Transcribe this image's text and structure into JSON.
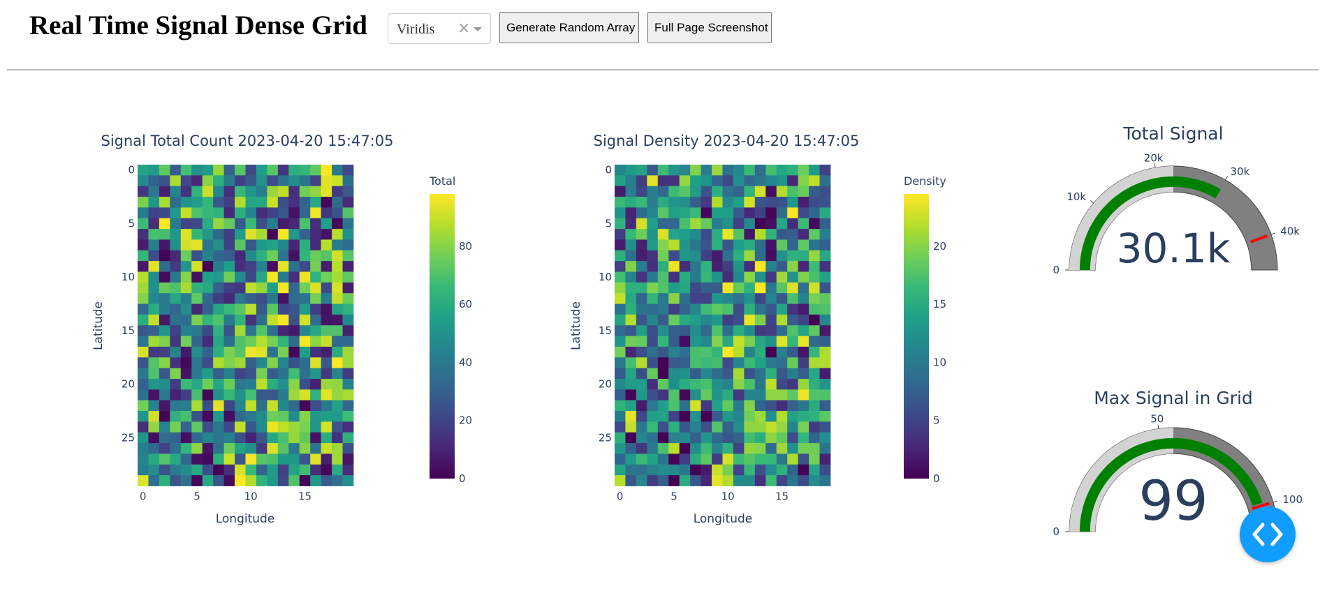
{
  "header": {
    "title": "Real Time Signal Dense Grid",
    "colorscale_value": "Viridis",
    "clear_glyph": "×",
    "generate_label": "Generate Random Array",
    "screenshot_label": "Full Page Screenshot"
  },
  "heatmaps": [
    {
      "title": "Signal Total Count 2023-04-20 15:47:05",
      "xlabel": "Longitude",
      "ylabel": "Latitude",
      "colorbar_title": "Total",
      "zmin": 0,
      "zmax": 98,
      "colorbar_ticks": [
        0,
        20,
        40,
        60,
        80
      ],
      "x_ticks": [
        0,
        5,
        10,
        15
      ],
      "y_ticks": [
        0,
        5,
        10,
        15,
        20,
        25
      ]
    },
    {
      "title": "Signal Density 2023-04-20 15:47:05",
      "xlabel": "Longitude",
      "ylabel": "Latitude",
      "colorbar_title": "Density",
      "zmin": 0,
      "zmax": 24.5,
      "colorbar_ticks": [
        0,
        5,
        10,
        15,
        20
      ],
      "x_ticks": [
        0,
        5,
        10,
        15
      ],
      "y_ticks": [
        0,
        5,
        10,
        15,
        20,
        25
      ]
    }
  ],
  "gauges": [
    {
      "title": "Total Signal",
      "value": 30100,
      "value_text": "30.1k",
      "range": [
        0,
        45000
      ],
      "steps_end": 22500,
      "threshold": 40000,
      "ticks": [
        {
          "value": 0,
          "label": "0"
        },
        {
          "value": 10000,
          "label": "10k"
        },
        {
          "value": 20000,
          "label": "20k"
        },
        {
          "value": 30000,
          "label": "30k"
        },
        {
          "value": 40000,
          "label": "40k"
        }
      ]
    },
    {
      "title": "Max Signal in Grid",
      "value": 99,
      "value_text": "99",
      "range": [
        0,
        110
      ],
      "steps_end": 55,
      "threshold": 100,
      "ticks": [
        {
          "value": 0,
          "label": "0"
        },
        {
          "value": 50,
          "label": "50"
        },
        {
          "value": 100,
          "label": "100"
        }
      ]
    }
  ],
  "colors": {
    "gauge_bar": "#008000",
    "gauge_step": "#d3d3d3",
    "gauge_bg": "#808080",
    "gauge_threshold": "#ff0000",
    "devtools": "#119dff"
  },
  "icons": {
    "clear": "clear-icon",
    "dropdown": "chevron-down-icon",
    "devtools": "code-icon"
  },
  "chart_data": [
    {
      "type": "heatmap",
      "title": "Signal Total Count 2023-04-20 15:47:05",
      "xlabel": "Longitude",
      "ylabel": "Latitude",
      "x": [
        0,
        1,
        2,
        3,
        4,
        5,
        6,
        7,
        8,
        9,
        10,
        11,
        12,
        13,
        14,
        15,
        16,
        17,
        18,
        19
      ],
      "y": [
        0,
        1,
        2,
        3,
        4,
        5,
        6,
        7,
        8,
        9,
        10,
        11,
        12,
        13,
        14,
        15,
        16,
        17,
        18,
        19,
        20,
        21,
        22,
        23,
        24,
        25,
        26,
        27,
        28,
        29
      ],
      "zrange": [
        0,
        98
      ],
      "colorscale": "Viridis",
      "colorbar_title": "Total"
    },
    {
      "type": "heatmap",
      "title": "Signal Density 2023-04-20 15:47:05",
      "xlabel": "Longitude",
      "ylabel": "Latitude",
      "x": [
        0,
        1,
        2,
        3,
        4,
        5,
        6,
        7,
        8,
        9,
        10,
        11,
        12,
        13,
        14,
        15,
        16,
        17,
        18,
        19
      ],
      "y": [
        0,
        1,
        2,
        3,
        4,
        5,
        6,
        7,
        8,
        9,
        10,
        11,
        12,
        13,
        14,
        15,
        16,
        17,
        18,
        19,
        20,
        21,
        22,
        23,
        24,
        25,
        26,
        27,
        28,
        29
      ],
      "zrange": [
        0,
        24.5
      ],
      "colorscale": "Viridis",
      "colorbar_title": "Density"
    },
    {
      "type": "gauge",
      "title": "Total Signal",
      "value": 30100,
      "range": [
        0,
        45000
      ],
      "threshold": 40000
    },
    {
      "type": "gauge",
      "title": "Max Signal in Grid",
      "value": 99,
      "range": [
        0,
        110
      ],
      "threshold": 100
    }
  ]
}
